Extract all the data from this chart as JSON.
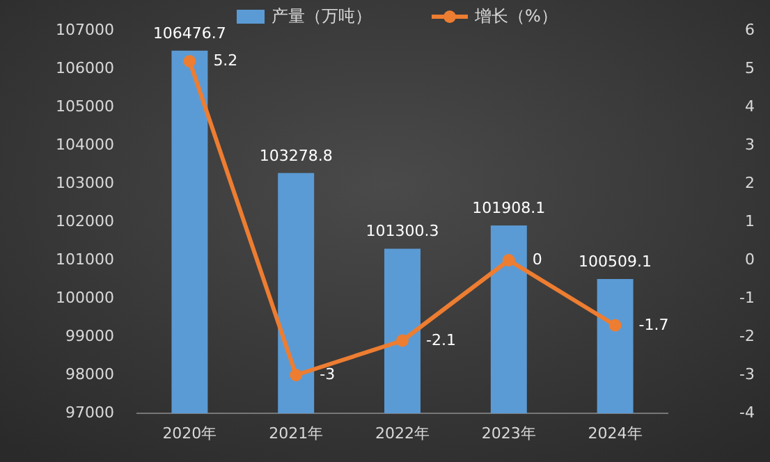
{
  "chart_data": {
    "type": "bar",
    "categories": [
      "2020年",
      "2021年",
      "2022年",
      "2023年",
      "2024年"
    ],
    "series": [
      {
        "name": "产量（万吨）",
        "color": "#5b9bd5",
        "values": [
          106476.7,
          103278.8,
          101300.3,
          101908.1,
          100509.1
        ]
      },
      {
        "name": "增长（%）",
        "type": "line",
        "axis": "y2",
        "color": "#ed7d31",
        "marker": "circle",
        "values": [
          5.2,
          -3,
          -2.1,
          0,
          -1.7
        ]
      }
    ],
    "ylim": [
      97000,
      107000
    ],
    "yticks": [
      97000,
      98000,
      99000,
      100000,
      101000,
      102000,
      103000,
      104000,
      105000,
      106000,
      107000
    ],
    "y2lim": [
      -4,
      6
    ],
    "y2ticks": [
      -4,
      -3,
      -2,
      -1,
      0,
      1,
      2,
      3,
      4,
      5,
      6
    ],
    "legend": "top",
    "data_labels": true
  }
}
